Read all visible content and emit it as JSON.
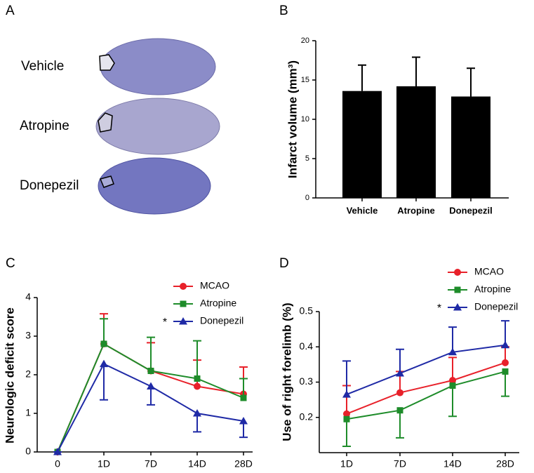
{
  "panel_a": {
    "label": "A",
    "groups": [
      "Vehicle",
      "Atropine",
      "Donepezil"
    ]
  },
  "chart_data": [
    {
      "panel_label": "B",
      "type": "bar",
      "ylabel": "Infarct volume (mm³)",
      "categories": [
        "Vehicle",
        "Atropine",
        "Donepezil"
      ],
      "values": [
        13.6,
        14.2,
        12.9
      ],
      "errors": [
        3.3,
        3.7,
        3.6
      ],
      "color": "#000000",
      "ylim": [
        0,
        20
      ],
      "yticks": [
        0,
        5,
        10,
        15,
        20
      ]
    },
    {
      "panel_label": "C",
      "type": "line",
      "ylabel": "Neurologic deficit  score",
      "categories": [
        "0",
        "1D",
        "7D",
        "14D",
        "28D"
      ],
      "series": [
        {
          "name": "MCAO",
          "color": "#e8212a",
          "marker": "circle",
          "values": [
            0,
            2.8,
            2.1,
            1.7,
            1.5
          ],
          "errors": [
            0,
            0.78,
            0.73,
            0.68,
            0.7
          ],
          "error_direction": "up"
        },
        {
          "name": "Atropine",
          "color": "#1e8c2a",
          "marker": "square",
          "values": [
            0,
            2.8,
            2.1,
            1.9,
            1.4
          ],
          "errors": [
            0,
            0.65,
            0.87,
            0.98,
            0.5
          ],
          "error_direction": "up"
        },
        {
          "name": "Donepezil",
          "color": "#1f2aa6",
          "marker": "triangle",
          "values": [
            0,
            2.28,
            1.7,
            1.0,
            0.8
          ],
          "errors": [
            0,
            0.93,
            0.48,
            0.48,
            0.42
          ],
          "error_direction": "down"
        }
      ],
      "ylim": [
        0,
        4
      ],
      "yticks": [
        0,
        1,
        2,
        3,
        4
      ],
      "legend": "upper right",
      "annotations": [
        {
          "text": "*",
          "series": 2
        }
      ]
    },
    {
      "panel_label": "D",
      "type": "line",
      "ylabel": "Use of right forelimb (%)",
      "categories": [
        "1D",
        "7D",
        "14D",
        "28D"
      ],
      "series": [
        {
          "name": "MCAO",
          "color": "#e8212a",
          "marker": "circle",
          "values": [
            0.21,
            0.27,
            0.305,
            0.355
          ],
          "errors": [
            0.08,
            0.06,
            0.065,
            0.045
          ],
          "error_direction": "up"
        },
        {
          "name": "Atropine",
          "color": "#1e8c2a",
          "marker": "square",
          "values": [
            0.195,
            0.22,
            0.29,
            0.33
          ],
          "errors": [
            0.077,
            0.078,
            0.087,
            0.07
          ],
          "error_direction": "down"
        },
        {
          "name": "Donepezil",
          "color": "#1f2aa6",
          "marker": "triangle",
          "values": [
            0.265,
            0.325,
            0.385,
            0.405
          ],
          "errors": [
            0.095,
            0.068,
            0.071,
            0.069
          ],
          "error_direction": "up"
        }
      ],
      "ylim": [
        0.1,
        0.5
      ],
      "yticks": [
        0.2,
        0.3,
        0.4,
        0.5
      ],
      "legend": "upper right",
      "annotations": [
        {
          "text": "*",
          "series": 2
        }
      ]
    }
  ]
}
